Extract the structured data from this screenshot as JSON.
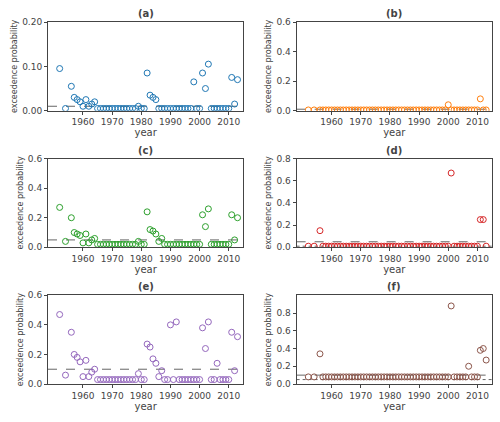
{
  "chart_data": [
    {
      "type": "scatter",
      "title": "(a)",
      "xlabel": "year",
      "ylabel": "exceedence probability",
      "marker": "circle-open",
      "grid": false,
      "xlim": [
        1948,
        2015
      ],
      "xticks": [
        1960,
        1970,
        1980,
        1990,
        2000,
        2010
      ],
      "ylim": [
        0,
        0.2
      ],
      "yticks": [
        {
          "value": 0.0,
          "label": "0.00"
        },
        {
          "value": 0.1,
          "label": "0.10"
        },
        {
          "value": 0.2,
          "label": "0.20"
        }
      ],
      "hlines": [
        {
          "y": 0.01,
          "line_style": "dashed"
        }
      ],
      "x": [
        1952,
        1954,
        1956,
        1957,
        1958,
        1959,
        1960,
        1961,
        1962,
        1963,
        1964,
        1965,
        1966,
        1967,
        1968,
        1969,
        1970,
        1971,
        1972,
        1973,
        1974,
        1975,
        1976,
        1977,
        1978,
        1979,
        1980,
        1981,
        1982,
        1983,
        1984,
        1985,
        1986,
        1987,
        1988,
        1989,
        1990,
        1991,
        1992,
        1993,
        1994,
        1995,
        1996,
        1997,
        1998,
        1999,
        2000,
        2001,
        2002,
        2003,
        2004,
        2005,
        2006,
        2007,
        2008,
        2009,
        2010,
        2011,
        2012,
        2013
      ],
      "values": [
        0.095,
        0.005,
        0.055,
        0.03,
        0.025,
        0.02,
        0.01,
        0.025,
        0.01,
        0.015,
        0.02,
        0.005,
        0.005,
        0.005,
        0.005,
        0.005,
        0.005,
        0.005,
        0.005,
        0.005,
        0.005,
        0.005,
        0.005,
        0.005,
        0.005,
        0.01,
        0.005,
        0.005,
        0.085,
        0.035,
        0.03,
        0.025,
        0.005,
        0.005,
        0.005,
        0.005,
        0.005,
        0.005,
        0.005,
        0.005,
        0.005,
        0.005,
        0.005,
        0.005,
        0.065,
        0.005,
        0.005,
        0.085,
        0.05,
        0.105,
        0.005,
        0.005,
        0.005,
        0.005,
        0.005,
        0.005,
        0.005,
        0.075,
        0.015,
        0.07
      ]
    },
    {
      "type": "scatter",
      "title": "(b)",
      "xlabel": "year",
      "ylabel": "exceedence probability",
      "marker": "circle-open",
      "grid": false,
      "xlim": [
        1948,
        2015
      ],
      "xticks": [
        1960,
        1970,
        1980,
        1990,
        2000,
        2010
      ],
      "ylim": [
        0,
        0.6
      ],
      "yticks": [
        {
          "value": 0.0,
          "label": "0.0"
        },
        0.2,
        0.4,
        0.6
      ],
      "hlines": [
        {
          "y": 0.01,
          "line_style": "dashed"
        }
      ],
      "x": [
        1952,
        1954,
        1956,
        1957,
        1958,
        1959,
        1960,
        1961,
        1962,
        1963,
        1964,
        1965,
        1966,
        1967,
        1968,
        1969,
        1970,
        1971,
        1972,
        1973,
        1974,
        1975,
        1976,
        1977,
        1978,
        1979,
        1980,
        1981,
        1982,
        1983,
        1984,
        1985,
        1986,
        1987,
        1988,
        1989,
        1990,
        1991,
        1992,
        1993,
        1994,
        1995,
        1996,
        1997,
        1998,
        1999,
        2000,
        2001,
        2002,
        2003,
        2004,
        2005,
        2006,
        2007,
        2008,
        2009,
        2010,
        2011,
        2012,
        2013
      ],
      "values": [
        0.005,
        0.005,
        0.005,
        0.005,
        0.005,
        0.005,
        0.005,
        0.005,
        0.005,
        0.005,
        0.005,
        0.005,
        0.005,
        0.005,
        0.005,
        0.005,
        0.005,
        0.005,
        0.005,
        0.005,
        0.005,
        0.005,
        0.005,
        0.005,
        0.005,
        0.005,
        0.005,
        0.005,
        0.005,
        0.005,
        0.005,
        0.005,
        0.005,
        0.005,
        0.005,
        0.005,
        0.005,
        0.005,
        0.005,
        0.005,
        0.005,
        0.005,
        0.005,
        0.005,
        0.005,
        0.005,
        0.04,
        0.005,
        0.005,
        0.005,
        0.005,
        0.005,
        0.005,
        0.005,
        0.005,
        0.005,
        0.005,
        0.08,
        0.005,
        0.005
      ]
    },
    {
      "type": "scatter",
      "title": "(c)",
      "xlabel": "year",
      "ylabel": "exceedence probability",
      "marker": "circle-open",
      "grid": false,
      "xlim": [
        1948,
        2015
      ],
      "xticks": [
        1960,
        1970,
        1980,
        1990,
        2000,
        2010
      ],
      "ylim": [
        0,
        0.6
      ],
      "yticks": [
        {
          "value": 0.0,
          "label": "0.0"
        },
        0.2,
        0.4,
        0.6
      ],
      "hlines": [
        {
          "y": 0.05,
          "line_style": "dashed"
        }
      ],
      "x": [
        1952,
        1954,
        1956,
        1957,
        1958,
        1959,
        1960,
        1961,
        1962,
        1963,
        1964,
        1965,
        1966,
        1967,
        1968,
        1969,
        1970,
        1971,
        1972,
        1973,
        1974,
        1975,
        1976,
        1977,
        1978,
        1979,
        1980,
        1981,
        1982,
        1983,
        1984,
        1985,
        1986,
        1987,
        1988,
        1989,
        1990,
        1991,
        1992,
        1993,
        1994,
        1995,
        1996,
        1997,
        1998,
        1999,
        2000,
        2001,
        2002,
        2003,
        2004,
        2005,
        2006,
        2007,
        2008,
        2009,
        2010,
        2011,
        2012,
        2013
      ],
      "values": [
        0.27,
        0.04,
        0.2,
        0.1,
        0.09,
        0.08,
        0.03,
        0.09,
        0.03,
        0.05,
        0.06,
        0.02,
        0.02,
        0.02,
        0.02,
        0.02,
        0.02,
        0.02,
        0.02,
        0.02,
        0.02,
        0.02,
        0.02,
        0.02,
        0.02,
        0.04,
        0.02,
        0.02,
        0.24,
        0.12,
        0.11,
        0.09,
        0.04,
        0.06,
        0.02,
        0.02,
        0.02,
        0.02,
        0.02,
        0.02,
        0.02,
        0.02,
        0.02,
        0.02,
        0.02,
        0.02,
        0.02,
        0.22,
        0.14,
        0.26,
        0.02,
        0.02,
        0.02,
        0.02,
        0.02,
        0.02,
        0.02,
        0.22,
        0.05,
        0.2
      ]
    },
    {
      "type": "scatter",
      "title": "(d)",
      "xlabel": "year",
      "ylabel": "exceedence probability",
      "marker": "circle-open",
      "grid": false,
      "xlim": [
        1948,
        2015
      ],
      "xticks": [
        1960,
        1970,
        1980,
        1990,
        2000,
        2010
      ],
      "ylim": [
        0,
        0.8
      ],
      "yticks": [
        {
          "value": 0.0,
          "label": "0.0"
        },
        0.2,
        0.4,
        0.6,
        0.8
      ],
      "hlines": [
        {
          "y": 0.05,
          "line_style": "dashed"
        },
        {
          "y": 0.01,
          "line_style": "dotted"
        }
      ],
      "x": [
        1952,
        1954,
        1956,
        1957,
        1958,
        1959,
        1960,
        1961,
        1962,
        1963,
        1964,
        1965,
        1966,
        1967,
        1968,
        1969,
        1970,
        1971,
        1972,
        1973,
        1974,
        1975,
        1976,
        1977,
        1978,
        1979,
        1980,
        1981,
        1982,
        1983,
        1984,
        1985,
        1986,
        1987,
        1988,
        1989,
        1990,
        1991,
        1992,
        1993,
        1994,
        1995,
        1996,
        1997,
        1998,
        1999,
        2000,
        2001,
        2002,
        2003,
        2004,
        2005,
        2006,
        2007,
        2008,
        2009,
        2010,
        2011,
        2012,
        2013
      ],
      "values": [
        0.01,
        0.01,
        0.15,
        0.01,
        0.01,
        0.01,
        0.01,
        0.01,
        0.01,
        0.01,
        0.01,
        0.01,
        0.01,
        0.01,
        0.01,
        0.01,
        0.01,
        0.01,
        0.01,
        0.01,
        0.01,
        0.01,
        0.01,
        0.01,
        0.01,
        0.01,
        0.01,
        0.01,
        0.01,
        0.01,
        0.01,
        0.01,
        0.01,
        0.01,
        0.01,
        0.01,
        0.01,
        0.01,
        0.01,
        0.01,
        0.01,
        0.01,
        0.01,
        0.01,
        0.01,
        0.01,
        0.01,
        0.67,
        0.01,
        0.01,
        0.01,
        0.01,
        0.01,
        0.01,
        0.01,
        0.01,
        0.01,
        0.25,
        0.25,
        0.01
      ]
    },
    {
      "type": "scatter",
      "title": "(e)",
      "xlabel": "year",
      "ylabel": "exceedence probability",
      "marker": "circle-open",
      "grid": false,
      "xlim": [
        1948,
        2015
      ],
      "xticks": [
        1960,
        1970,
        1980,
        1990,
        2000,
        2010
      ],
      "ylim": [
        0,
        0.6
      ],
      "yticks": [
        {
          "value": 0.0,
          "label": "0.0"
        },
        0.2,
        0.4,
        0.6
      ],
      "hlines": [
        {
          "y": 0.1,
          "line_style": "dashed"
        }
      ],
      "x": [
        1952,
        1954,
        1956,
        1957,
        1958,
        1959,
        1960,
        1961,
        1962,
        1963,
        1964,
        1965,
        1966,
        1967,
        1968,
        1969,
        1970,
        1971,
        1972,
        1973,
        1974,
        1975,
        1976,
        1977,
        1978,
        1979,
        1980,
        1981,
        1982,
        1983,
        1984,
        1985,
        1986,
        1987,
        1988,
        1989,
        1990,
        1991,
        1992,
        1993,
        1994,
        1995,
        1996,
        1997,
        1998,
        1999,
        2000,
        2001,
        2002,
        2003,
        2004,
        2005,
        2006,
        2007,
        2008,
        2009,
        2010,
        2011,
        2012,
        2013
      ],
      "values": [
        0.47,
        0.06,
        0.35,
        0.2,
        0.18,
        0.15,
        0.05,
        0.16,
        0.05,
        0.08,
        0.1,
        0.03,
        0.03,
        0.03,
        0.03,
        0.03,
        0.03,
        0.03,
        0.03,
        0.03,
        0.03,
        0.03,
        0.03,
        0.03,
        0.03,
        0.07,
        0.03,
        0.03,
        0.27,
        0.25,
        0.17,
        0.14,
        0.05,
        0.09,
        0.03,
        0.03,
        0.4,
        0.03,
        0.42,
        0.03,
        0.03,
        0.03,
        0.03,
        0.03,
        0.03,
        0.03,
        0.03,
        0.38,
        0.24,
        0.42,
        0.03,
        0.03,
        0.14,
        0.03,
        0.03,
        0.03,
        0.03,
        0.35,
        0.09,
        0.32
      ]
    },
    {
      "type": "scatter",
      "title": "(f)",
      "xlabel": "year",
      "ylabel": "exceedence probability",
      "marker": "circle-open",
      "grid": false,
      "xlim": [
        1948,
        2015
      ],
      "xticks": [
        1960,
        1970,
        1980,
        1990,
        2000,
        2010
      ],
      "ylim": [
        0,
        1.0
      ],
      "yticks": [
        {
          "value": 0.0,
          "label": "0.0"
        },
        0.2,
        0.4,
        0.6,
        0.8
      ],
      "hlines": [
        {
          "y": 0.1,
          "line_style": "dashed"
        },
        {
          "y": 0.05,
          "line_style": "dotted"
        }
      ],
      "x": [
        1952,
        1954,
        1956,
        1957,
        1958,
        1959,
        1960,
        1961,
        1962,
        1963,
        1964,
        1965,
        1966,
        1967,
        1968,
        1969,
        1970,
        1971,
        1972,
        1973,
        1974,
        1975,
        1976,
        1977,
        1978,
        1979,
        1980,
        1981,
        1982,
        1983,
        1984,
        1985,
        1986,
        1987,
        1988,
        1989,
        1990,
        1991,
        1992,
        1993,
        1994,
        1995,
        1996,
        1997,
        1998,
        1999,
        2000,
        2001,
        2002,
        2003,
        2004,
        2005,
        2006,
        2007,
        2008,
        2009,
        2010,
        2011,
        2012,
        2013
      ],
      "values": [
        0.08,
        0.08,
        0.34,
        0.08,
        0.08,
        0.08,
        0.08,
        0.08,
        0.08,
        0.08,
        0.08,
        0.08,
        0.08,
        0.08,
        0.08,
        0.08,
        0.08,
        0.08,
        0.08,
        0.08,
        0.08,
        0.08,
        0.08,
        0.08,
        0.08,
        0.08,
        0.08,
        0.08,
        0.08,
        0.08,
        0.08,
        0.08,
        0.08,
        0.08,
        0.08,
        0.08,
        0.08,
        0.08,
        0.08,
        0.08,
        0.08,
        0.08,
        0.08,
        0.08,
        0.08,
        0.08,
        0.08,
        0.88,
        0.08,
        0.08,
        0.08,
        0.08,
        0.08,
        0.2,
        0.08,
        0.08,
        0.08,
        0.38,
        0.4,
        0.27
      ]
    }
  ]
}
